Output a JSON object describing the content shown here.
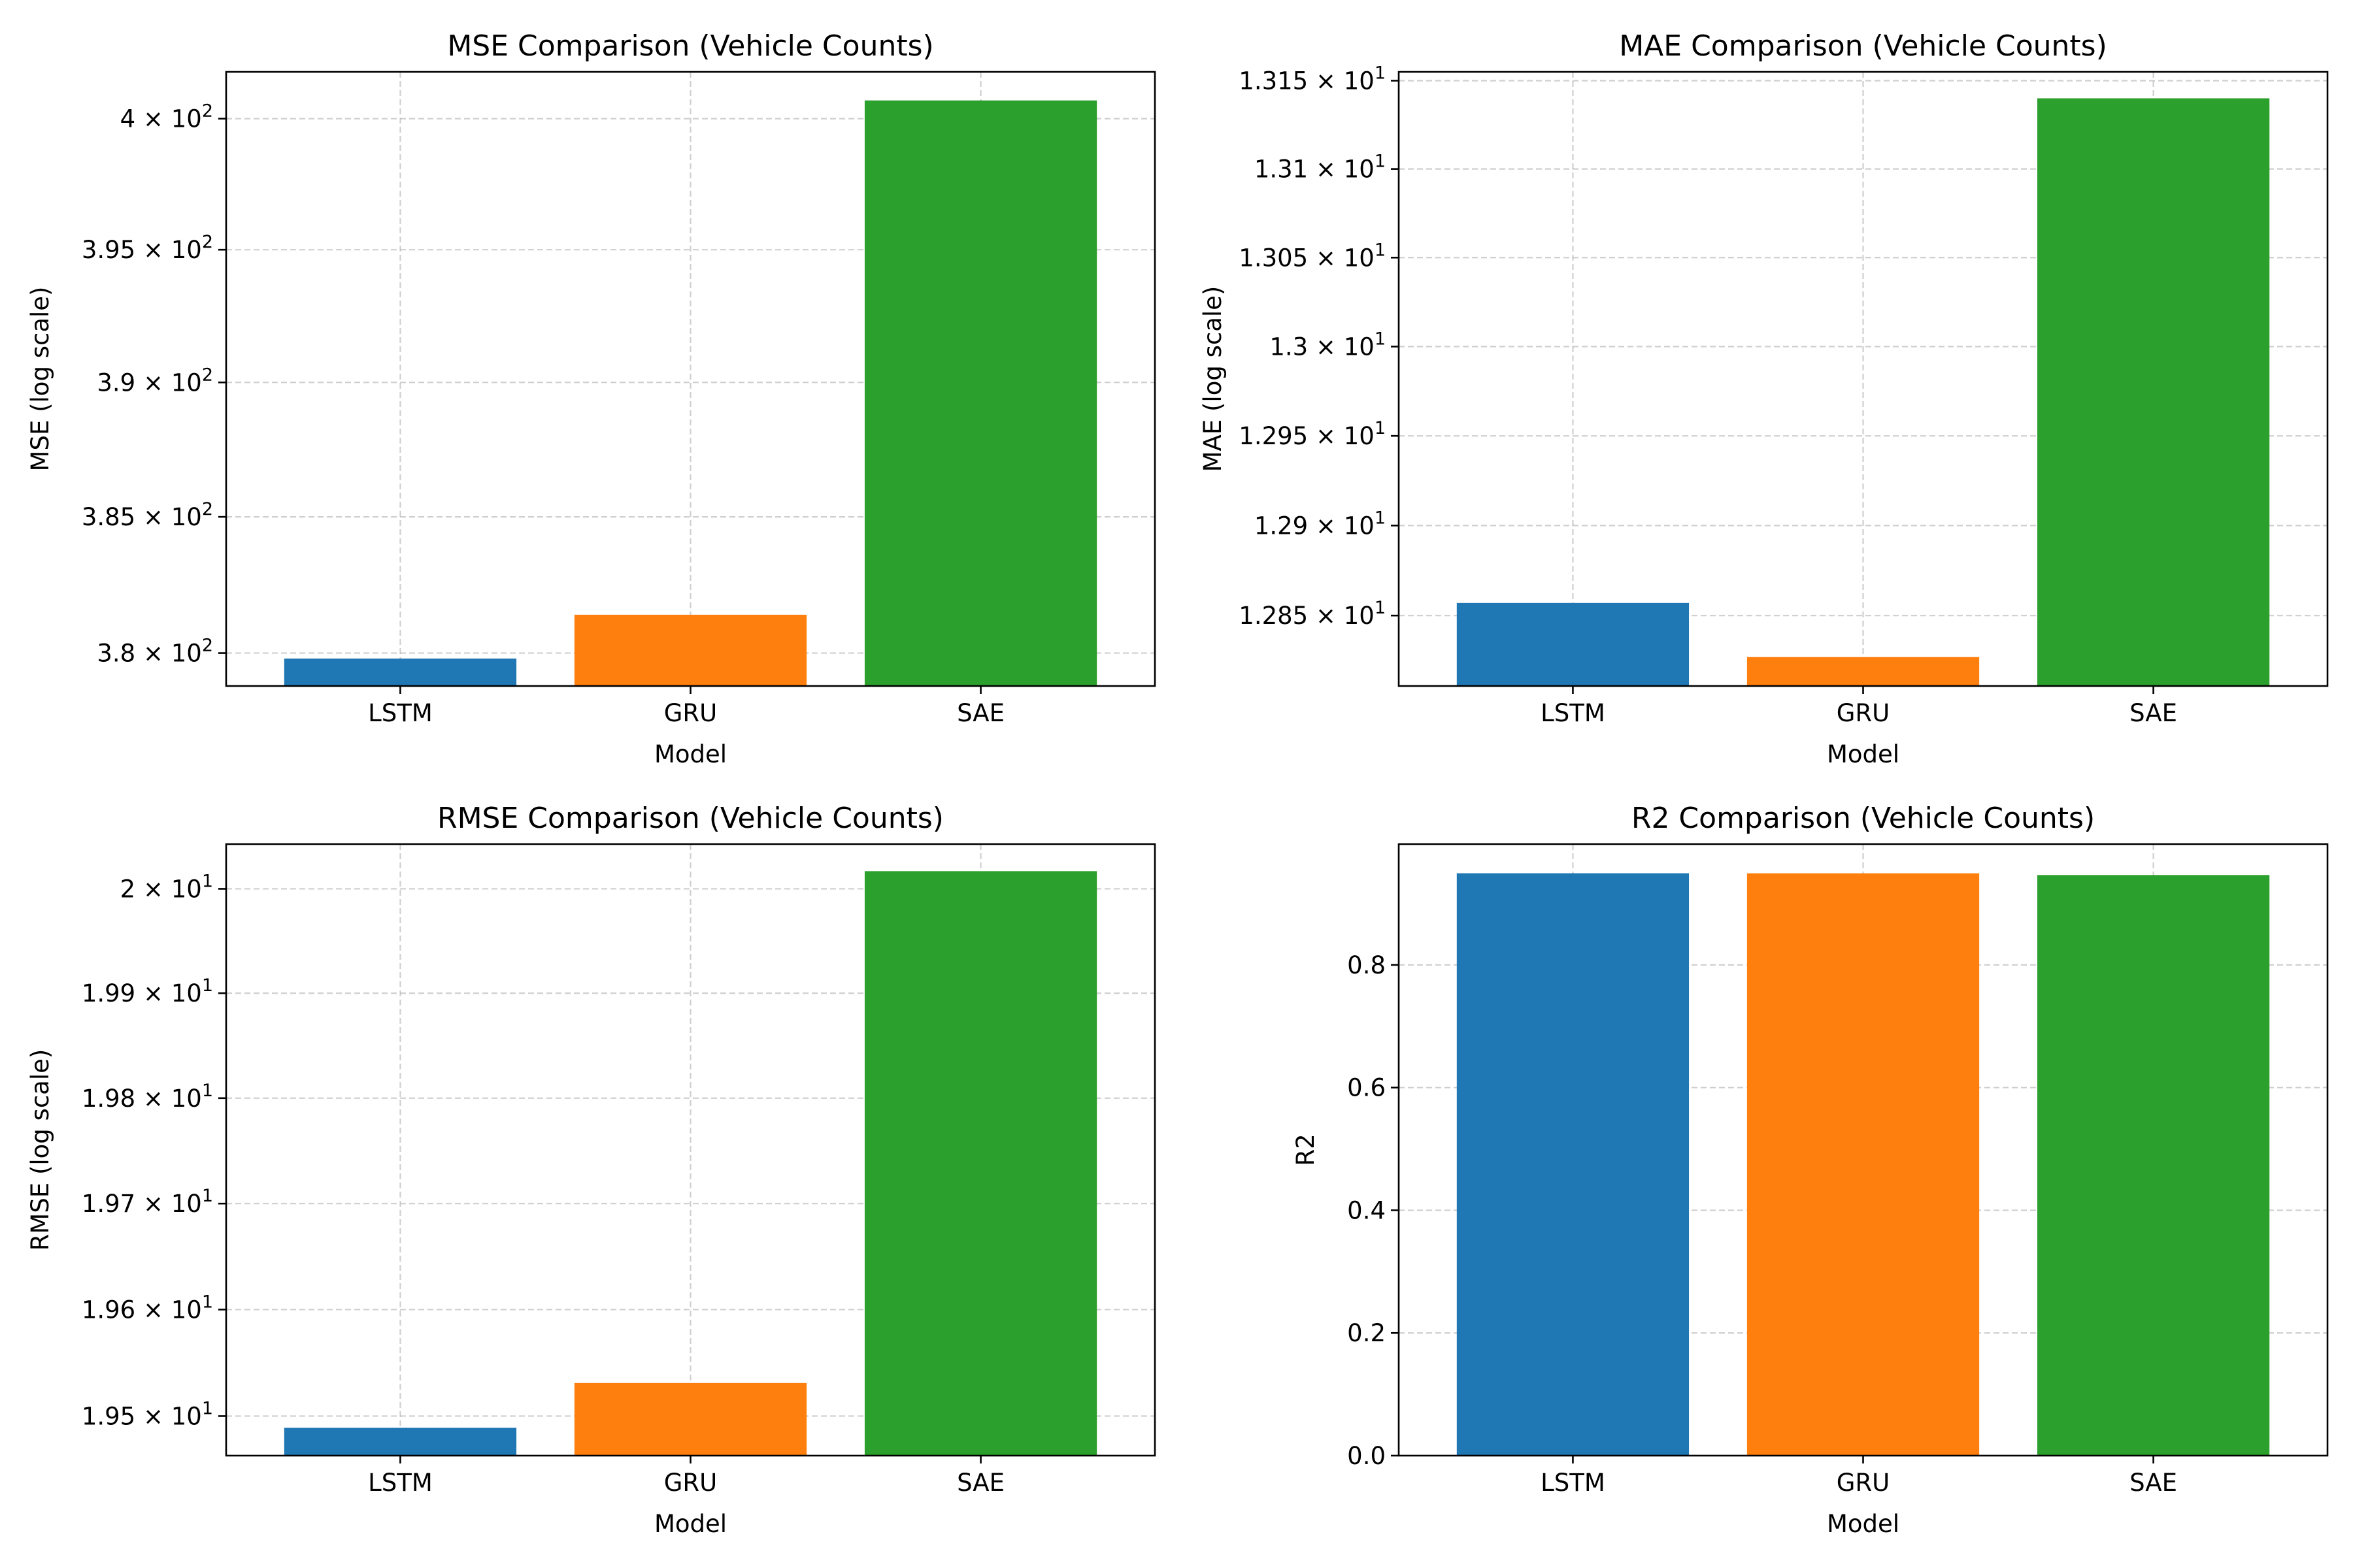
{
  "chart_data": [
    {
      "type": "bar",
      "title": "MSE Comparison (Vehicle Counts)",
      "xlabel": "Model",
      "ylabel": "MSE (log scale)",
      "yscale": "log",
      "categories": [
        "LSTM",
        "GRU",
        "SAE"
      ],
      "values": [
        379.8,
        381.4,
        400.7
      ],
      "colors": [
        "#1f77b4",
        "#ff7f0e",
        "#2ca02c"
      ],
      "ylim": [
        378.8,
        401.8
      ],
      "yticks": [
        {
          "value": 380,
          "mantissa": "3.8"
        },
        {
          "value": 385,
          "mantissa": "3.85"
        },
        {
          "value": 390,
          "mantissa": "3.9"
        },
        {
          "value": 395,
          "mantissa": "3.95"
        },
        {
          "value": 400,
          "mantissa": "4"
        }
      ],
      "exponent": "2",
      "grid": true
    },
    {
      "type": "bar",
      "title": "MAE Comparison (Vehicle Counts)",
      "xlabel": "Model",
      "ylabel": "MAE (log scale)",
      "yscale": "log",
      "categories": [
        "LSTM",
        "GRU",
        "SAE"
      ],
      "values": [
        12.857,
        12.827,
        13.14
      ],
      "colors": [
        "#1f77b4",
        "#ff7f0e",
        "#2ca02c"
      ],
      "ylim": [
        12.811,
        13.155
      ],
      "yticks": [
        {
          "value": 12.85,
          "mantissa": "1.285"
        },
        {
          "value": 12.9,
          "mantissa": "1.29"
        },
        {
          "value": 12.95,
          "mantissa": "1.295"
        },
        {
          "value": 13.0,
          "mantissa": "1.3"
        },
        {
          "value": 13.05,
          "mantissa": "1.305"
        },
        {
          "value": 13.1,
          "mantissa": "1.31"
        },
        {
          "value": 13.15,
          "mantissa": "1.315"
        }
      ],
      "exponent": "1",
      "grid": true
    },
    {
      "type": "bar",
      "title": "RMSE Comparison (Vehicle Counts)",
      "xlabel": "Model",
      "ylabel": "RMSE (log scale)",
      "yscale": "log",
      "categories": [
        "LSTM",
        "GRU",
        "SAE"
      ],
      "values": [
        19.489,
        19.531,
        20.017
      ],
      "colors": [
        "#1f77b4",
        "#ff7f0e",
        "#2ca02c"
      ],
      "ylim": [
        19.463,
        20.043
      ],
      "yticks": [
        {
          "value": 19.5,
          "mantissa": "1.95"
        },
        {
          "value": 19.6,
          "mantissa": "1.96"
        },
        {
          "value": 19.7,
          "mantissa": "1.97"
        },
        {
          "value": 19.8,
          "mantissa": "1.98"
        },
        {
          "value": 19.9,
          "mantissa": "1.99"
        },
        {
          "value": 20.0,
          "mantissa": "2"
        }
      ],
      "exponent": "1",
      "grid": true
    },
    {
      "type": "bar",
      "title": "R2 Comparison (Vehicle Counts)",
      "xlabel": "Model",
      "ylabel": "R2",
      "yscale": "linear",
      "categories": [
        "LSTM",
        "GRU",
        "SAE"
      ],
      "values": [
        0.9495,
        0.9494,
        0.9466
      ],
      "colors": [
        "#1f77b4",
        "#ff7f0e",
        "#2ca02c"
      ],
      "ylim": [
        0,
        0.997
      ],
      "yticks": [
        {
          "value": 0.0,
          "label": "0.0"
        },
        {
          "value": 0.2,
          "label": "0.2"
        },
        {
          "value": 0.4,
          "label": "0.4"
        },
        {
          "value": 0.6,
          "label": "0.6"
        },
        {
          "value": 0.8,
          "label": "0.8"
        }
      ],
      "grid": true
    }
  ]
}
